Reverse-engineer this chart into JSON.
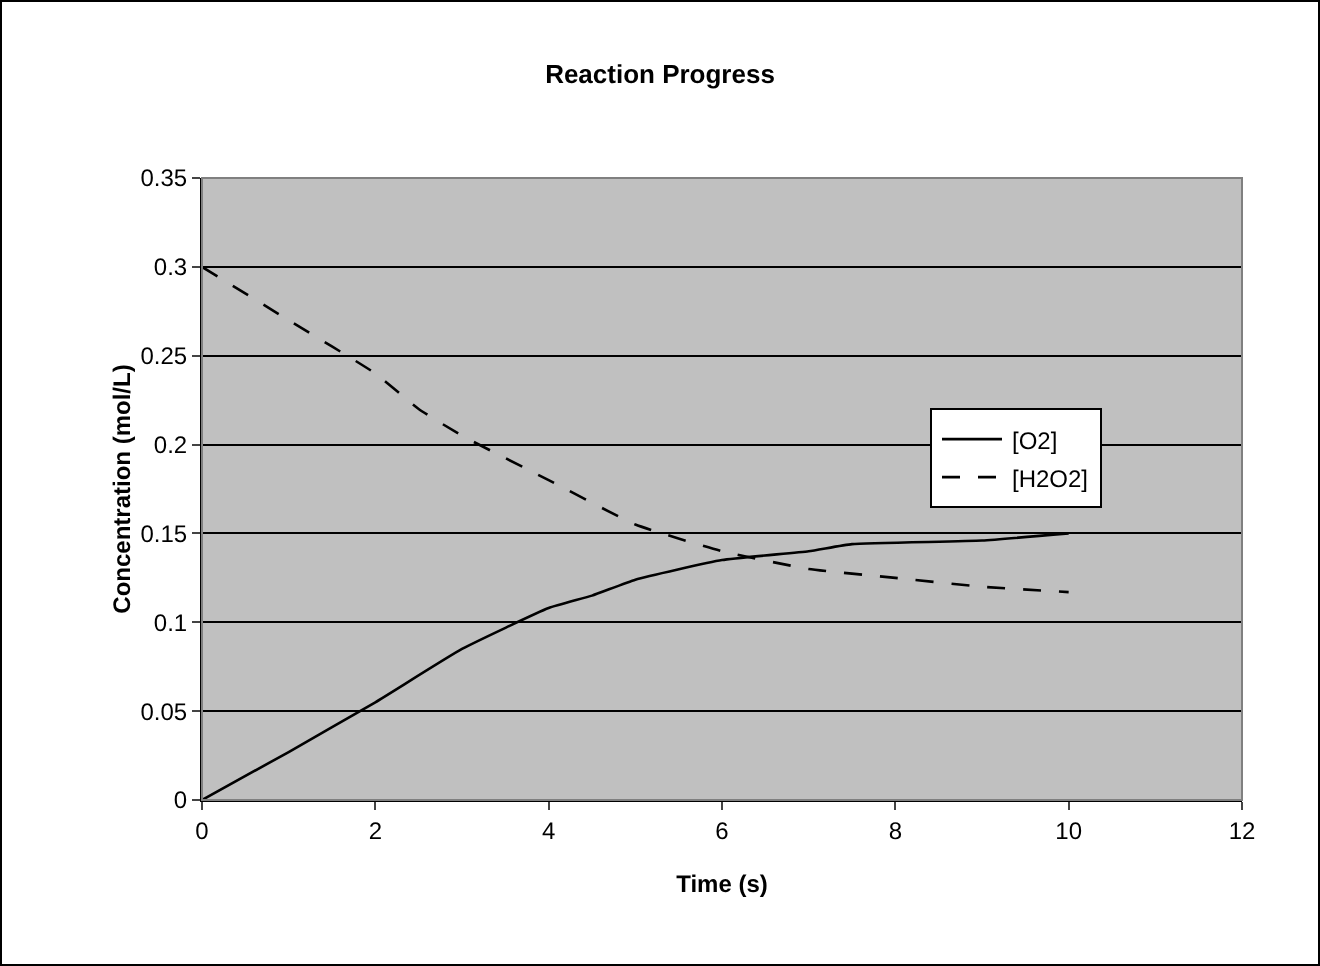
{
  "chart_data": {
    "type": "line",
    "title": "Reaction Progress",
    "xlabel": "Time (s)",
    "ylabel": "Concentration (mol/L)",
    "xlim": [
      0,
      12
    ],
    "xticks": [
      0,
      2,
      4,
      6,
      8,
      10,
      12
    ],
    "ylim": [
      0,
      0.35
    ],
    "yticks": [
      0,
      0.05,
      0.1,
      0.15,
      0.2,
      0.25,
      0.3,
      0.35
    ],
    "grid": "y",
    "legend": "right",
    "marker": "none",
    "series": [
      {
        "name": "[O2]",
        "color": "#000000",
        "line_style": "solid",
        "x": [
          0,
          1,
          2,
          3,
          4,
          4.5,
          5,
          6,
          7,
          7.5,
          9,
          10
        ],
        "values": [
          0,
          0.027,
          0.055,
          0.085,
          0.108,
          0.115,
          0.124,
          0.135,
          0.14,
          0.144,
          0.146,
          0.15
        ]
      },
      {
        "name": "[H2O2]",
        "color": "#000000",
        "line_style": "dashed",
        "x": [
          0,
          1,
          2,
          2.5,
          3,
          4,
          5,
          6,
          7,
          8,
          9,
          10
        ],
        "values": [
          0.3,
          0.27,
          0.24,
          0.22,
          0.205,
          0.18,
          0.155,
          0.14,
          0.13,
          0.125,
          0.12,
          0.117
        ]
      }
    ]
  }
}
